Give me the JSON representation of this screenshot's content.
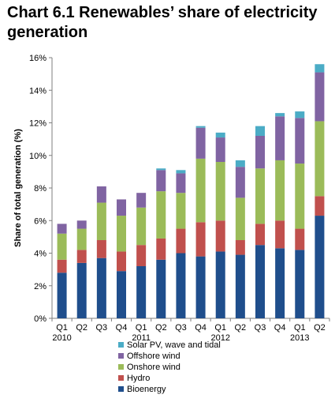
{
  "title": "Chart 6.1 Renewables’ share of electricity generation",
  "chart_data": {
    "type": "bar",
    "stacked": true,
    "title": "Chart 6.1 Renewables’ share of electricity generation",
    "ylabel": "Share of total generation (%)",
    "xlabel": "",
    "ylim": [
      0,
      16
    ],
    "y_ticks": [
      "0%",
      "2%",
      "4%",
      "6%",
      "8%",
      "10%",
      "12%",
      "14%",
      "16%"
    ],
    "y_tick_values": [
      0,
      2,
      4,
      6,
      8,
      10,
      12,
      14,
      16
    ],
    "categories": [
      "Q1",
      "Q2",
      "Q3",
      "Q4",
      "Q1",
      "Q2",
      "Q3",
      "Q4",
      "Q1",
      "Q2",
      "Q3",
      "Q4",
      "Q1",
      "Q2"
    ],
    "year_labels": [
      {
        "label": "2010",
        "category_index": 0
      },
      {
        "label": "2011",
        "category_index": 4
      },
      {
        "label": "2012",
        "category_index": 8
      },
      {
        "label": "2013",
        "category_index": 12
      }
    ],
    "grid": false,
    "legend_position": "bottom",
    "series": [
      {
        "name": "Bioenergy",
        "color": "#1f4e8c",
        "values": [
          2.8,
          3.4,
          3.7,
          2.9,
          3.2,
          3.6,
          4.0,
          3.8,
          4.1,
          3.9,
          4.5,
          4.3,
          4.2,
          6.3
        ]
      },
      {
        "name": "Hydro",
        "color": "#c0504d",
        "values": [
          0.8,
          0.8,
          1.1,
          1.2,
          1.3,
          1.3,
          1.5,
          2.1,
          1.9,
          0.9,
          1.3,
          1.7,
          1.3,
          1.2
        ]
      },
      {
        "name": "Onshore wind",
        "color": "#9bbb59",
        "values": [
          1.6,
          1.3,
          2.3,
          2.2,
          2.3,
          2.9,
          2.2,
          3.9,
          3.6,
          2.6,
          3.4,
          3.7,
          4.0,
          4.6
        ]
      },
      {
        "name": "Offshore wind",
        "color": "#8064a2",
        "values": [
          0.6,
          0.5,
          1.0,
          1.0,
          0.9,
          1.3,
          1.2,
          1.9,
          1.5,
          1.9,
          2.0,
          2.7,
          2.8,
          3.0
        ]
      },
      {
        "name": "Solar PV, wave and tidal",
        "color": "#4bacc6",
        "values": [
          0.0,
          0.0,
          0.0,
          0.0,
          0.0,
          0.1,
          0.2,
          0.1,
          0.3,
          0.4,
          0.6,
          0.2,
          0.4,
          0.5
        ]
      }
    ],
    "legend_order": [
      "Solar PV, wave and tidal",
      "Offshore wind",
      "Onshore wind",
      "Hydro",
      "Bioenergy"
    ]
  }
}
